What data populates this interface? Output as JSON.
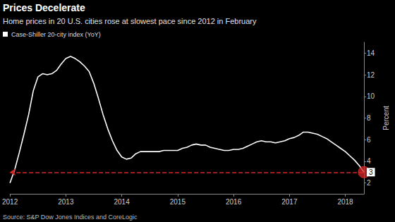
{
  "chart_data": {
    "type": "line",
    "title": "Prices Decelerate",
    "subtitle": "Home prices in 20 U.S. cities rose at slowest pace since 2012 in February",
    "y_label": "Percent",
    "source": "Source: S&P Dow Jones Indices and CoreLogic",
    "categories": [
      "2012",
      null,
      null,
      null,
      null,
      null,
      null,
      null,
      null,
      null,
      null,
      null,
      "2013",
      null,
      null,
      null,
      null,
      null,
      null,
      null,
      null,
      null,
      null,
      null,
      "2014",
      null,
      null,
      null,
      null,
      null,
      null,
      null,
      null,
      null,
      null,
      null,
      "2015",
      null,
      null,
      null,
      null,
      null,
      null,
      null,
      null,
      null,
      null,
      null,
      "2016",
      null,
      null,
      null,
      null,
      null,
      null,
      null,
      null,
      null,
      null,
      null,
      "2017",
      null,
      null,
      null,
      null,
      null,
      null,
      null,
      null,
      null,
      null,
      null,
      "2018",
      null,
      null,
      null,
      null
    ],
    "series": [
      {
        "name": "Case-Shiller 20-city index (YoY)",
        "color": "#ffffff",
        "values": [
          2.0,
          3.2,
          4.8,
          6.5,
          8.3,
          10.5,
          11.8,
          12.1,
          12.0,
          12.1,
          12.4,
          13.0,
          13.5,
          13.7,
          13.5,
          13.2,
          12.8,
          12.3,
          11.2,
          9.8,
          8.3,
          7.0,
          5.9,
          5.0,
          4.4,
          4.2,
          4.3,
          4.7,
          4.9,
          4.9,
          4.9,
          4.9,
          4.9,
          5.0,
          5.0,
          5.0,
          5.0,
          5.2,
          5.3,
          5.5,
          5.6,
          5.5,
          5.5,
          5.3,
          5.2,
          5.1,
          5.0,
          5.0,
          5.1,
          5.1,
          5.2,
          5.4,
          5.6,
          5.8,
          5.9,
          5.8,
          5.8,
          5.7,
          5.8,
          5.9,
          6.1,
          6.2,
          6.4,
          6.7,
          6.7,
          6.6,
          6.5,
          6.3,
          6.1,
          5.8,
          5.5,
          5.2,
          4.9,
          4.5,
          4.1,
          3.6,
          3.0
        ]
      }
    ],
    "ylim": [
      1,
      15
    ],
    "yticks": [
      2,
      4,
      6,
      8,
      10,
      12,
      14
    ],
    "grid": false,
    "legend": "top-left",
    "annotations": [
      {
        "y": 3
      }
    ]
  }
}
